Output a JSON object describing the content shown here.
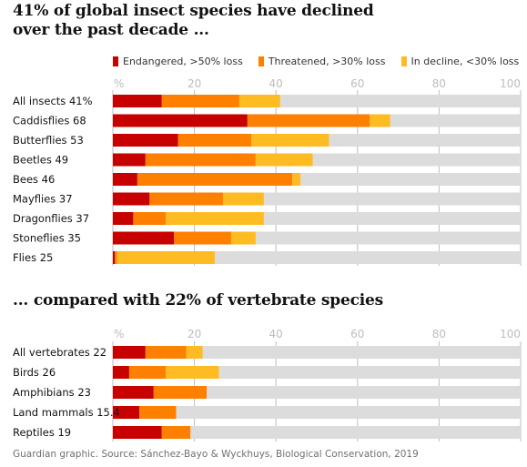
{
  "title": "41% of global insect species have declined over the past decade ...",
  "subtitle": "... compared with 22% of vertebrate species",
  "footer": "Guardian graphic. Source: Sánchez-Bayo & Wyckhuys, Biological Conservation, 2019",
  "colors": {
    "endangered": "#c70000",
    "threatened": "#ff7f00",
    "decline": "#ffbb22",
    "remainder": "#dcdcdc",
    "grid": "#bdbdbd"
  },
  "chart_data": [
    {
      "type": "bar",
      "orientation": "horizontal",
      "stacked": true,
      "xlim": [
        0,
        100
      ],
      "xticks": [
        "%",
        "20",
        "40",
        "60",
        "80",
        "100"
      ],
      "legend": [
        "Endangered, >50% loss",
        "Threatened, >30% loss",
        "In decline, <30% loss"
      ],
      "legend_position": "top",
      "grid": true,
      "categories": [
        "All insects 41%",
        "Caddisflies 68",
        "Butterflies 53",
        "Beetles 49",
        "Bees 46",
        "Mayflies 37",
        "Dragonflies 37",
        "Stoneflies 35",
        "Flies 25"
      ],
      "series": [
        {
          "name": "Endangered, >50% loss",
          "values": [
            12,
            33,
            16,
            8,
            6,
            9,
            5,
            15,
            0.5
          ]
        },
        {
          "name": "Threatened, >30% loss",
          "values": [
            19,
            30,
            18,
            27,
            38,
            18,
            8,
            14,
            0.5
          ]
        },
        {
          "name": "In decline, <30% loss",
          "values": [
            10,
            5,
            19,
            14,
            2,
            10,
            24,
            6,
            24
          ]
        }
      ]
    },
    {
      "type": "bar",
      "orientation": "horizontal",
      "stacked": true,
      "xlim": [
        0,
        100
      ],
      "xticks": [
        "%",
        "20",
        "40",
        "60",
        "80",
        "100"
      ],
      "grid": true,
      "categories": [
        "All vertebrates 22",
        "Birds 26",
        "Amphibians 23",
        "Land mammals 15.4",
        "Reptiles 19"
      ],
      "series": [
        {
          "name": "Endangered, >50% loss",
          "values": [
            8,
            4,
            10,
            6.5,
            12
          ]
        },
        {
          "name": "Threatened, >30% loss",
          "values": [
            10,
            9,
            13,
            9,
            7
          ]
        },
        {
          "name": "In decline, <30% loss",
          "values": [
            4,
            13,
            0,
            0,
            0
          ]
        }
      ]
    }
  ]
}
